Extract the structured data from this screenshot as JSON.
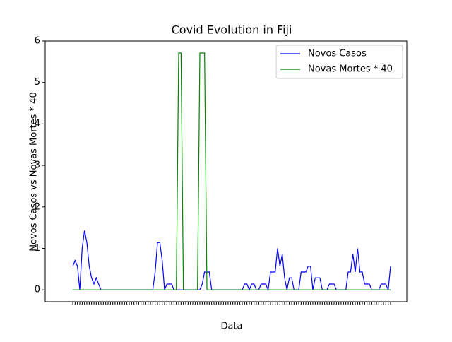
{
  "chart_data": {
    "type": "line",
    "title": "Covid Evolution in Fiji",
    "x_label": "Data",
    "y_label": "Novos Casos vs Novas Mortes * 40",
    "categories": [
      null,
      null,
      null,
      null,
      null,
      null,
      null,
      null,
      null,
      null,
      null,
      null,
      null,
      null,
      null,
      null,
      null,
      null,
      null,
      null,
      null,
      null,
      null,
      null,
      null,
      null,
      null,
      null,
      null,
      null,
      null,
      null,
      null,
      null,
      null,
      null,
      null,
      null,
      null,
      null,
      null,
      null,
      null,
      null,
      null,
      null,
      null,
      null,
      null,
      null,
      null,
      null,
      null,
      null,
      null,
      null,
      null,
      null,
      null,
      null,
      null,
      null,
      null,
      null,
      null,
      null,
      null,
      null,
      null,
      null,
      null,
      null,
      null,
      null,
      null,
      null,
      null,
      null,
      null,
      null,
      null,
      null,
      null,
      null,
      null,
      null,
      null,
      null,
      null,
      null,
      null,
      null,
      null,
      null,
      null,
      null,
      null,
      null,
      null,
      null,
      null,
      null,
      null,
      null,
      null,
      null,
      null,
      null,
      null,
      null,
      null,
      null,
      null,
      null,
      null,
      null,
      null,
      null,
      null,
      null,
      null,
      null,
      null,
      null,
      null,
      null,
      null,
      null,
      null,
      null,
      null,
      null,
      null,
      null,
      null,
      null
    ],
    "series": [
      {
        "name": "Novos Casos",
        "color": "#0000ff",
        "values": [
          0.57,
          0.71,
          0.57,
          0,
          1.0,
          1.43,
          1.14,
          0.57,
          0.29,
          0.14,
          0.29,
          0.14,
          0,
          0,
          0,
          0,
          0,
          0,
          0,
          0,
          0,
          0,
          0,
          0,
          0,
          0,
          0,
          0,
          0,
          0,
          0,
          0,
          0,
          0,
          0,
          0.43,
          1.14,
          1.14,
          0.71,
          0,
          0.14,
          0.14,
          0.14,
          0,
          0,
          0,
          0,
          0,
          0,
          0,
          0,
          0,
          0,
          0,
          0,
          0.14,
          0.43,
          0.43,
          0.43,
          0,
          0,
          0,
          0,
          0,
          0,
          0,
          0,
          0,
          0,
          0,
          0,
          0,
          0,
          0.14,
          0.14,
          0,
          0.14,
          0.14,
          0,
          0,
          0.14,
          0.14,
          0.14,
          0,
          0.43,
          0.43,
          0.43,
          1.0,
          0.57,
          0.86,
          0.29,
          0,
          0.29,
          0.29,
          0,
          0,
          0,
          0.43,
          0.43,
          0.43,
          0.57,
          0.57,
          0,
          0.29,
          0.29,
          0.29,
          0,
          0,
          0,
          0.14,
          0.14,
          0.14,
          0,
          0,
          0,
          0,
          0,
          0.43,
          0.43,
          0.86,
          0.43,
          1.0,
          0.43,
          0.43,
          0.14,
          0.14,
          0.14,
          0,
          0,
          0,
          0,
          0.14,
          0.14,
          0.14,
          0,
          0.57
        ]
      },
      {
        "name": "Novas Mortes * 40",
        "color": "#008000",
        "values": [
          0,
          0,
          0,
          0,
          0,
          0,
          0,
          0,
          0,
          0,
          0,
          0,
          0,
          0,
          0,
          0,
          0,
          0,
          0,
          0,
          0,
          0,
          0,
          0,
          0,
          0,
          0,
          0,
          0,
          0,
          0,
          0,
          0,
          0,
          0,
          0,
          0,
          0,
          0,
          0,
          0,
          0,
          0,
          0,
          0,
          5.71,
          5.71,
          0,
          0,
          0,
          0,
          0,
          0,
          0,
          5.71,
          5.71,
          5.71,
          0,
          0,
          0,
          0,
          0,
          0,
          0,
          0,
          0,
          0,
          0,
          0,
          0,
          0,
          0,
          0,
          0,
          0,
          0,
          0,
          0,
          0,
          0,
          0,
          0,
          0,
          0,
          0,
          0,
          0,
          0,
          0,
          0,
          0,
          0,
          0,
          0,
          0,
          0,
          0,
          0,
          0,
          0,
          0,
          0,
          0,
          0,
          0,
          0,
          0,
          0,
          0,
          0,
          0,
          0,
          0,
          0,
          0,
          0,
          0,
          0,
          0,
          0,
          0,
          0,
          0,
          0,
          0,
          0,
          0,
          0,
          0,
          0,
          0,
          0,
          0,
          0,
          0,
          0
        ]
      }
    ],
    "ylim": [
      -0.286,
      6
    ],
    "yticks": [
      0,
      1,
      2,
      3,
      4,
      5,
      6
    ],
    "legend": "upper right"
  }
}
